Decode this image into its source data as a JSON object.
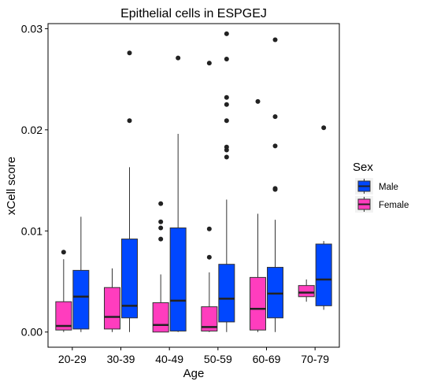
{
  "chart_data": {
    "type": "boxplot",
    "title": "Epithelial cells in ESPGEJ",
    "xlabel": "Age",
    "ylabel": "xCell score",
    "categories": [
      "20-29",
      "30-39",
      "40-49",
      "50-59",
      "60-69",
      "70-79"
    ],
    "ylim": [
      -0.0015,
      0.0305
    ],
    "yticks": [
      0,
      0.01,
      0.02,
      0.03
    ],
    "ytick_labels": [
      "0.00",
      "0.01",
      "0.02",
      "0.03"
    ],
    "grid": false,
    "legend": {
      "title": "Sex",
      "position": "right",
      "entries": [
        {
          "name": "Male",
          "color": "#0047FF"
        },
        {
          "name": "Female",
          "color": "#FF3DBE"
        }
      ]
    },
    "series": [
      {
        "name": "Female",
        "color": "#FF3DBE",
        "boxes": [
          {
            "category": "20-29",
            "whisker_low": 0.0,
            "q1": 0.0002,
            "median": 0.0006,
            "q3": 0.003,
            "whisker_high": 0.0072,
            "outliers": [
              0.0079
            ]
          },
          {
            "category": "30-39",
            "whisker_low": 0.0,
            "q1": 0.0003,
            "median": 0.0015,
            "q3": 0.0044,
            "whisker_high": 0.0063,
            "outliers": []
          },
          {
            "category": "40-49",
            "whisker_low": 0.0,
            "q1": 0.0,
            "median": 0.0007,
            "q3": 0.0029,
            "whisker_high": 0.0057,
            "outliers": [
              0.0092,
              0.0103,
              0.0109,
              0.0127
            ]
          },
          {
            "category": "50-59",
            "whisker_low": 0.0,
            "q1": 0.0001,
            "median": 0.0005,
            "q3": 0.0025,
            "whisker_high": 0.0059,
            "outliers": [
              0.0074,
              0.0102,
              0.0266
            ]
          },
          {
            "category": "60-69",
            "whisker_low": 0.0,
            "q1": 0.0002,
            "median": 0.0023,
            "q3": 0.0054,
            "whisker_high": 0.0117,
            "outliers": [
              0.0228
            ]
          },
          {
            "category": "70-79",
            "whisker_low": 0.003,
            "q1": 0.0035,
            "median": 0.0039,
            "q3": 0.0046,
            "whisker_high": 0.0052,
            "outliers": []
          }
        ]
      },
      {
        "name": "Male",
        "color": "#0047FF",
        "boxes": [
          {
            "category": "20-29",
            "whisker_low": 0.0,
            "q1": 0.0003,
            "median": 0.0035,
            "q3": 0.0061,
            "whisker_high": 0.0114,
            "outliers": []
          },
          {
            "category": "30-39",
            "whisker_low": 0.0,
            "q1": 0.0014,
            "median": 0.0026,
            "q3": 0.0092,
            "whisker_high": 0.0163,
            "outliers": [
              0.0209,
              0.0276
            ]
          },
          {
            "category": "40-49",
            "whisker_low": 0.0,
            "q1": 0.0001,
            "median": 0.0031,
            "q3": 0.0103,
            "whisker_high": 0.0196,
            "outliers": [
              0.0271
            ]
          },
          {
            "category": "50-59",
            "whisker_low": 0.0,
            "q1": 0.001,
            "median": 0.0033,
            "q3": 0.0067,
            "whisker_high": 0.0131,
            "outliers": [
              0.0173,
              0.018,
              0.0183,
              0.0209,
              0.0225,
              0.0232,
              0.027,
              0.0295
            ]
          },
          {
            "category": "60-69",
            "whisker_low": 0.0,
            "q1": 0.0014,
            "median": 0.0038,
            "q3": 0.0064,
            "whisker_high": 0.0111,
            "outliers": [
              0.0141,
              0.0142,
              0.0184,
              0.0213,
              0.0289
            ]
          },
          {
            "category": "70-79",
            "whisker_low": 0.0022,
            "q1": 0.0026,
            "median": 0.0052,
            "q3": 0.0087,
            "whisker_high": 0.009,
            "outliers": [
              0.0202
            ]
          }
        ]
      }
    ]
  }
}
